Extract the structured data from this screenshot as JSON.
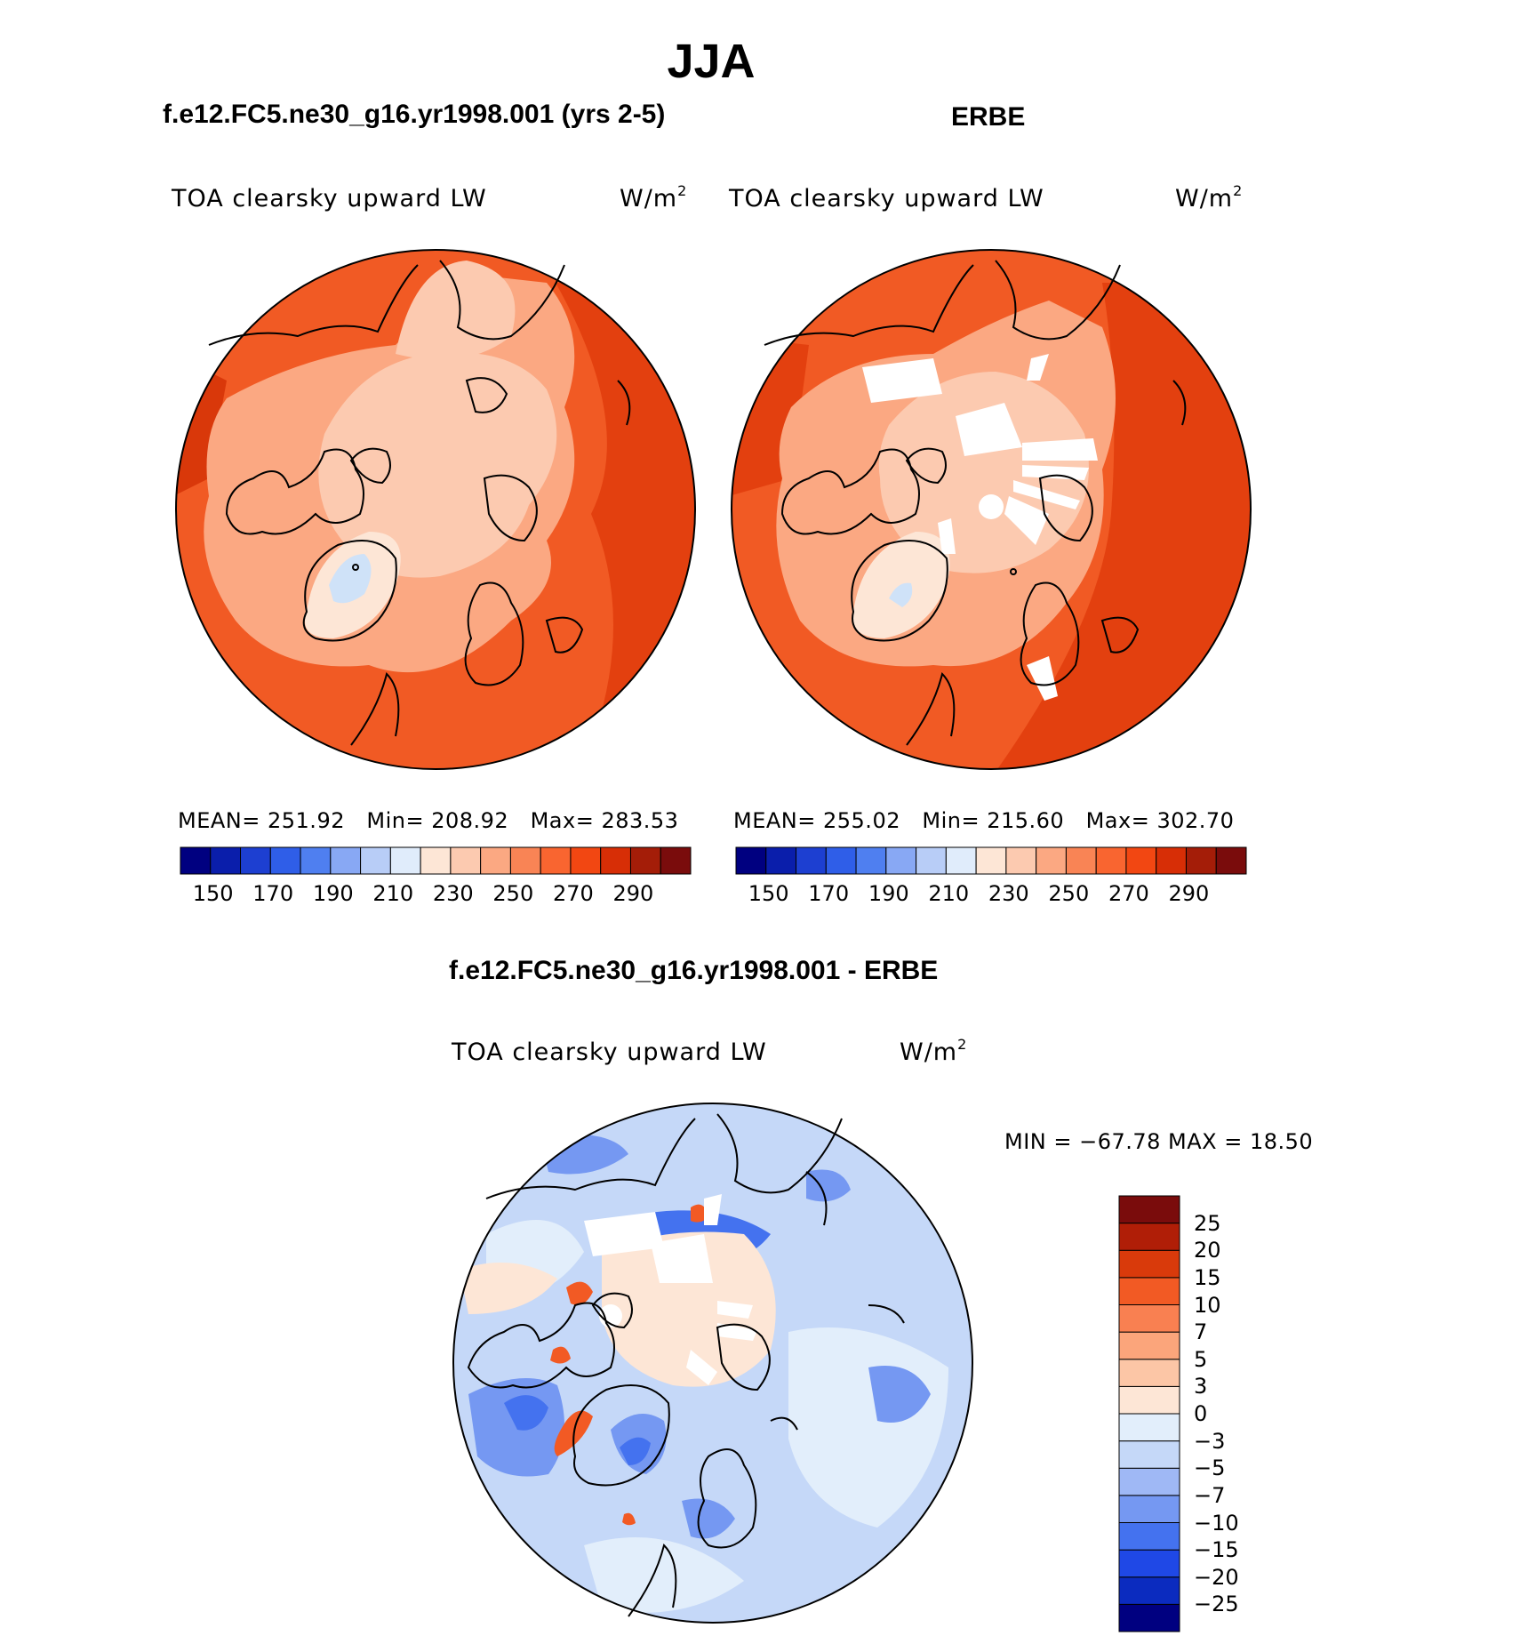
{
  "figure": {
    "title": "JJA"
  },
  "panel_left": {
    "title": "f.e12.FC5.ne30_g16.yr1998.001 (yrs 2-5)",
    "variable": "TOA clearsky upward LW",
    "units": "W/m",
    "units_exponent": "2",
    "mean_label": "MEAN=",
    "mean_value": "251.92",
    "min_label": "Min=",
    "min_value": "208.92",
    "max_label": "Max=",
    "max_value": "283.53"
  },
  "panel_right": {
    "title": "ERBE",
    "variable": "TOA clearsky upward LW",
    "units": "W/m",
    "units_exponent": "2",
    "mean_label": "MEAN=",
    "mean_value": "255.02",
    "min_label": "Min=",
    "min_value": "215.60",
    "max_label": "Max=",
    "max_value": "302.70"
  },
  "panel_diff": {
    "title": "f.e12.FC5.ne30_g16.yr1998.001 - ERBE",
    "variable": "TOA clearsky upward LW",
    "units": "W/m",
    "units_exponent": "2",
    "minmax_text": "MIN = −67.78 MAX =   18.50"
  },
  "colorbar_abs": {
    "colors": [
      "#000080",
      "#0a1eab",
      "#1d3fd1",
      "#2f5ee8",
      "#4f7ff0",
      "#88a8f4",
      "#b8cdf7",
      "#e0ecfb",
      "#fde6d6",
      "#fccab0",
      "#fba882",
      "#f98455",
      "#f96530",
      "#f24712",
      "#d72e06",
      "#a41d08",
      "#7a0c0c"
    ],
    "tick_labels": [
      "150",
      "170",
      "190",
      "210",
      "230",
      "250",
      "270",
      "290"
    ]
  },
  "colorbar_diff": {
    "colors": [
      "#000080",
      "#0b2bbf",
      "#1f48e6",
      "#4472ef",
      "#7598f2",
      "#9fb8f5",
      "#c5d8f8",
      "#e2eefb",
      "#fde6d6",
      "#fcc6a6",
      "#fba57b",
      "#f98051",
      "#f25a24",
      "#d93a0b",
      "#b01e07",
      "#7a0c0c"
    ],
    "levels": [
      "25",
      "20",
      "15",
      "10",
      "7",
      "5",
      "3",
      "0",
      "−3",
      "−5",
      "−7",
      "−10",
      "−15",
      "−20",
      "−25"
    ]
  },
  "map_colors": {
    "ocean_warm": "#f15a24",
    "ocean_hot": "#e3400f",
    "arctic_light": "#fccab0",
    "mid": "#fba882",
    "greenland_core": "#fde6d6",
    "greenland_blue": "#cfe2f8",
    "diff_base": "#c5d8f8",
    "diff_dark": "#4472ef",
    "diff_warm": "#fde6d6",
    "diff_red": "#f25a24"
  }
}
